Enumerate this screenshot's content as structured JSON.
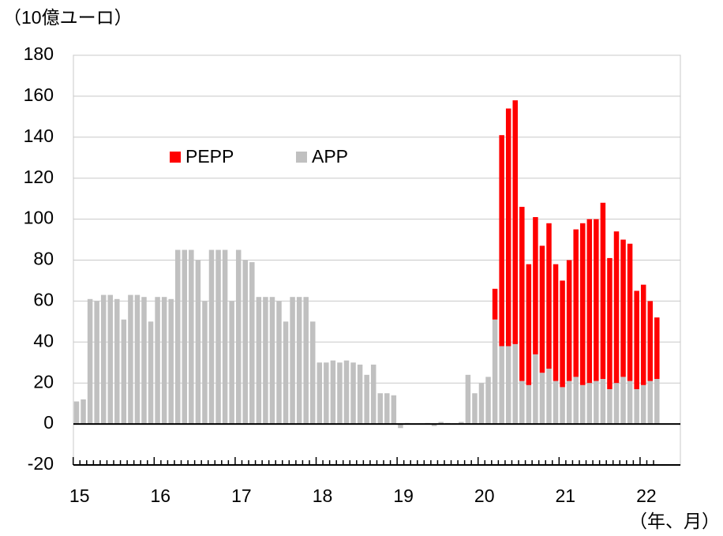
{
  "chart_data": {
    "type": "stacked_bar",
    "unit_label": "（10億ユーロ）",
    "x_label": "（年、月）",
    "categories": [
      "15",
      null,
      null,
      null,
      null,
      null,
      null,
      null,
      null,
      null,
      null,
      null,
      "16",
      null,
      null,
      null,
      null,
      null,
      null,
      null,
      null,
      null,
      null,
      null,
      "17",
      null,
      null,
      null,
      null,
      null,
      null,
      null,
      null,
      null,
      null,
      null,
      "18",
      null,
      null,
      null,
      null,
      null,
      null,
      null,
      null,
      null,
      null,
      null,
      "19",
      null,
      null,
      null,
      null,
      null,
      null,
      null,
      null,
      null,
      null,
      null,
      "20",
      null,
      null,
      null,
      null,
      null,
      null,
      null,
      null,
      null,
      null,
      null,
      "21",
      null,
      null,
      null,
      null,
      null,
      null,
      null,
      null,
      null,
      null,
      null,
      "22",
      null,
      null
    ],
    "series": [
      {
        "name": "APP",
        "color": "#c0c0c0",
        "values": [
          11,
          12,
          61,
          60,
          63,
          63,
          61,
          51,
          63,
          63,
          62,
          50,
          62,
          62,
          61,
          85,
          85,
          85,
          80,
          60,
          85,
          85,
          85,
          60,
          85,
          80,
          79,
          62,
          62,
          62,
          60,
          50,
          62,
          62,
          62,
          50,
          30,
          30,
          31,
          30,
          31,
          30,
          29,
          24,
          29,
          15,
          15,
          14,
          -2,
          0.5,
          0,
          0.3,
          0.5,
          -1,
          1,
          0.5,
          0.3,
          1,
          24,
          15,
          20,
          23,
          51,
          38,
          38,
          39,
          21,
          19,
          34,
          25,
          27,
          21,
          18,
          21,
          23,
          19,
          20,
          21,
          22,
          17,
          20,
          23,
          21,
          17,
          19,
          21,
          22
        ]
      },
      {
        "name": "PEPP",
        "color": "#ff0000",
        "values": [
          null,
          null,
          null,
          null,
          null,
          null,
          null,
          null,
          null,
          null,
          null,
          null,
          null,
          null,
          null,
          null,
          null,
          null,
          null,
          null,
          null,
          null,
          null,
          null,
          null,
          null,
          null,
          null,
          null,
          null,
          null,
          null,
          null,
          null,
          null,
          null,
          null,
          null,
          null,
          null,
          null,
          null,
          null,
          null,
          null,
          null,
          null,
          null,
          null,
          null,
          null,
          null,
          null,
          null,
          null,
          null,
          null,
          null,
          null,
          null,
          null,
          null,
          15,
          103,
          116,
          119,
          85,
          59,
          67,
          62,
          71,
          57,
          52,
          59,
          72,
          79,
          80,
          79,
          86,
          64,
          74,
          67,
          67,
          48,
          49,
          39,
          30
        ]
      }
    ],
    "ylim": [
      -20,
      180
    ],
    "yticks": [
      -20,
      0,
      20,
      40,
      60,
      80,
      100,
      120,
      140,
      160,
      180
    ],
    "grid": true
  }
}
